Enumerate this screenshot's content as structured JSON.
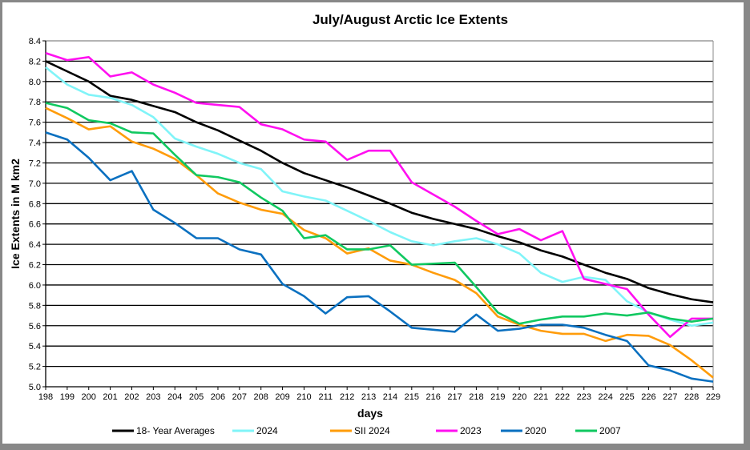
{
  "chart_data": {
    "type": "line",
    "title": "July/August Arctic Ice Extents",
    "xlabel": "days",
    "ylabel": "Ice Extents in M km2",
    "x": [
      198,
      199,
      200,
      201,
      202,
      203,
      204,
      205,
      206,
      207,
      208,
      209,
      210,
      211,
      212,
      213,
      214,
      215,
      216,
      217,
      218,
      219,
      220,
      221,
      222,
      223,
      224,
      225,
      226,
      227,
      228,
      229
    ],
    "xlim": [
      198,
      229
    ],
    "ylim": [
      5.0,
      8.4
    ],
    "yticks": [
      "5.0",
      "5.2",
      "5.4",
      "5.6",
      "5.8",
      "6.0",
      "6.2",
      "6.4",
      "6.6",
      "6.8",
      "7.0",
      "7.2",
      "7.4",
      "7.6",
      "7.8",
      "8.0",
      "8.2",
      "8.4"
    ],
    "xticks": [
      "198",
      "199",
      "200",
      "201",
      "202",
      "203",
      "204",
      "205",
      "206",
      "207",
      "208",
      "209",
      "210",
      "211",
      "212",
      "213",
      "214",
      "215",
      "216",
      "217",
      "218",
      "219",
      "220",
      "221",
      "222",
      "223",
      "224",
      "225",
      "226",
      "227",
      "228",
      "229"
    ],
    "grid": true,
    "legend_position": "bottom",
    "series": [
      {
        "name": "18- Year Averages",
        "color": "#000000",
        "values": [
          8.2,
          8.1,
          8.0,
          7.86,
          7.82,
          7.76,
          7.7,
          7.6,
          7.52,
          7.42,
          7.32,
          7.2,
          7.1,
          7.03,
          6.96,
          6.88,
          6.8,
          6.71,
          6.65,
          6.6,
          6.55,
          6.48,
          6.42,
          6.34,
          6.28,
          6.2,
          6.12,
          6.06,
          5.97,
          5.91,
          5.86,
          5.83
        ]
      },
      {
        "name": "2024",
        "color": "#80F4F8",
        "values": [
          8.14,
          7.97,
          7.87,
          7.84,
          7.77,
          7.65,
          7.44,
          7.36,
          7.29,
          7.2,
          7.14,
          6.92,
          6.87,
          6.83,
          6.73,
          6.63,
          6.52,
          6.43,
          6.39,
          6.43,
          6.46,
          6.4,
          6.31,
          6.12,
          6.03,
          6.08,
          6.05,
          5.84,
          5.73,
          5.66,
          5.6,
          5.63
        ]
      },
      {
        "name": "SII 2024",
        "color": "#FF9C0A",
        "values": [
          7.74,
          7.64,
          7.53,
          7.56,
          7.41,
          7.34,
          7.24,
          7.08,
          6.9,
          6.81,
          6.74,
          6.7,
          6.54,
          6.46,
          6.31,
          6.36,
          6.24,
          6.2,
          6.12,
          6.05,
          5.92,
          5.69,
          5.61,
          5.55,
          5.52,
          5.52,
          5.45,
          5.51,
          5.5,
          5.41,
          5.26,
          5.09
        ]
      },
      {
        "name": "2023",
        "color": "#FF10F0",
        "values": [
          8.28,
          8.21,
          8.24,
          8.05,
          8.09,
          7.97,
          7.89,
          7.79,
          7.77,
          7.75,
          7.58,
          7.53,
          7.43,
          7.41,
          7.23,
          7.32,
          7.32,
          7.01,
          6.89,
          6.77,
          6.63,
          6.5,
          6.55,
          6.44,
          6.53,
          6.06,
          6.01,
          5.96,
          5.71,
          5.49,
          5.67,
          5.67
        ]
      },
      {
        "name": "2020",
        "color": "#0A70C0",
        "values": [
          7.5,
          7.43,
          7.25,
          7.03,
          7.12,
          6.74,
          6.61,
          6.46,
          6.46,
          6.35,
          6.3,
          6.01,
          5.89,
          5.72,
          5.88,
          5.89,
          5.74,
          5.58,
          5.56,
          5.54,
          5.71,
          5.55,
          5.57,
          5.61,
          5.61,
          5.58,
          5.51,
          5.45,
          5.21,
          5.16,
          5.08,
          5.05
        ]
      },
      {
        "name": "2007",
        "color": "#10C860",
        "values": [
          7.79,
          7.74,
          7.62,
          7.59,
          7.5,
          7.49,
          7.28,
          7.08,
          7.06,
          7.01,
          6.86,
          6.73,
          6.46,
          6.49,
          6.35,
          6.35,
          6.39,
          6.2,
          6.21,
          6.22,
          5.98,
          5.73,
          5.62,
          5.66,
          5.69,
          5.69,
          5.72,
          5.7,
          5.73,
          5.67,
          5.64,
          5.67
        ]
      }
    ]
  }
}
